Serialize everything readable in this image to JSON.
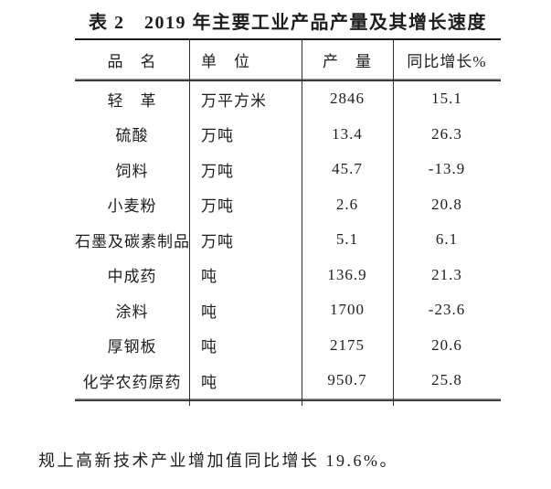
{
  "title": "表 2　2019 年主要工业产品产量及其增长速度",
  "table": {
    "headers": [
      "品　名",
      "单　位",
      "产　量",
      "同比增长%"
    ],
    "rows": [
      {
        "name": "轻　革",
        "unit": "万平方米",
        "output": "2846",
        "growth": "15.1"
      },
      {
        "name": "硫酸",
        "unit": "万吨",
        "output": "13.4",
        "growth": "26.3"
      },
      {
        "name": "饲料",
        "unit": "万吨",
        "output": "45.7",
        "growth": "-13.9"
      },
      {
        "name": "小麦粉",
        "unit": "万吨",
        "output": "2.6",
        "growth": "20.8"
      },
      {
        "name": "石墨及碳素制品",
        "unit": "万吨",
        "output": "5.1",
        "growth": "6.1"
      },
      {
        "name": "中成药",
        "unit": "吨",
        "output": "136.9",
        "growth": "21.3"
      },
      {
        "name": "涂料",
        "unit": "吨",
        "output": "1700",
        "growth": "-23.6"
      },
      {
        "name": "厚钢板",
        "unit": "吨",
        "output": "2175",
        "growth": "20.6"
      },
      {
        "name": "化学农药原药",
        "unit": "吨",
        "output": "950.7",
        "growth": "25.8"
      }
    ]
  },
  "footer_text": "规上高新技术产业增加值同比增长 19.6%。",
  "colors": {
    "ink": "#1d1d1d",
    "rule_dark": "#1a1a1a",
    "rule_gray": "#9a9a9a",
    "background": "#ffffff"
  }
}
